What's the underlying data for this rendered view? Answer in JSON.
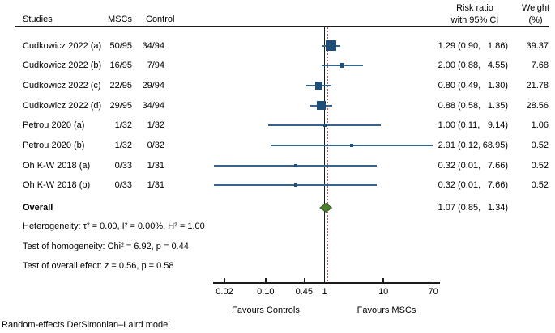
{
  "header": {
    "studies": "Studies",
    "mscs": "MSCs",
    "control": "Control",
    "risk_ratio_line1": "Risk ratio",
    "risk_ratio_line2": "with 95% CI",
    "weight_line1": "Weight",
    "weight_line2": "(%)"
  },
  "chart_data": {
    "type": "forest",
    "effect_measure": "Risk ratio",
    "scale": "log",
    "studies": [
      {
        "name": "Cudkowicz 2022 (a)",
        "mscs": "50/95",
        "control": "34/94",
        "rr": 1.29,
        "ci_lo": 0.9,
        "ci_hi": 1.86,
        "weight": 39.37
      },
      {
        "name": "Cudkowicz 2022 (b)",
        "mscs": "16/95",
        "control": "7/94",
        "rr": 2.0,
        "ci_lo": 0.88,
        "ci_hi": 4.55,
        "weight": 7.68
      },
      {
        "name": "Cudkowicz 2022 (c)",
        "mscs": "22/95",
        "control": "29/94",
        "rr": 0.8,
        "ci_lo": 0.49,
        "ci_hi": 1.3,
        "weight": 21.78
      },
      {
        "name": "Cudkowicz 2022 (d)",
        "mscs": "29/95",
        "control": "34/94",
        "rr": 0.88,
        "ci_lo": 0.58,
        "ci_hi": 1.35,
        "weight": 28.56
      },
      {
        "name": "Petrou 2020 (a)",
        "mscs": "1/32",
        "control": "1/32",
        "rr": 1.0,
        "ci_lo": 0.11,
        "ci_hi": 9.14,
        "weight": 1.06
      },
      {
        "name": "Petrou 2020 (b)",
        "mscs": "1/32",
        "control": "0/32",
        "rr": 2.91,
        "ci_lo": 0.12,
        "ci_hi": 68.95,
        "weight": 0.52
      },
      {
        "name": "Oh K-W 2018 (a)",
        "mscs": "0/33",
        "control": "1/31",
        "rr": 0.32,
        "ci_lo": 0.01,
        "ci_hi": 7.66,
        "weight": 0.52
      },
      {
        "name": "Oh K-W 2018 (b)",
        "mscs": "0/33",
        "control": "1/31",
        "rr": 0.32,
        "ci_lo": 0.01,
        "ci_hi": 7.66,
        "weight": 0.52
      }
    ],
    "overall": {
      "label": "Overall",
      "rr": 1.07,
      "ci_lo": 0.85,
      "ci_hi": 1.34
    },
    "axis": {
      "scale": "log",
      "ref_value": 1,
      "tick_values": [
        0.02,
        0.1,
        0.45,
        1,
        10,
        70
      ],
      "tick_labels": [
        "0.02",
        "0.10",
        "0.45",
        "1",
        "10",
        "70"
      ]
    },
    "favours_left": "Favours Controls",
    "favours_right": "Favours MSCs"
  },
  "stats": {
    "heterogeneity": "Heterogeneity: τ² = 0.00, I² = 0.00%, H² = 1.00",
    "homogeneity": "Test of homogeneity: Chi² = 6.92, p = 0.44",
    "overall_effect": "Test of overall efect: z = 0.56, p = 0.58"
  },
  "footer": "Random-effects DerSimonian–Laird model",
  "colors": {
    "marker": "#1f4e79",
    "ci_line": "#35658f",
    "diamond": "#4d7d2e",
    "diamond_border": "#33561f",
    "ref_line": "#1a1a1a",
    "estimate_line": "#bc5350",
    "axis": "#1a1a1a"
  }
}
